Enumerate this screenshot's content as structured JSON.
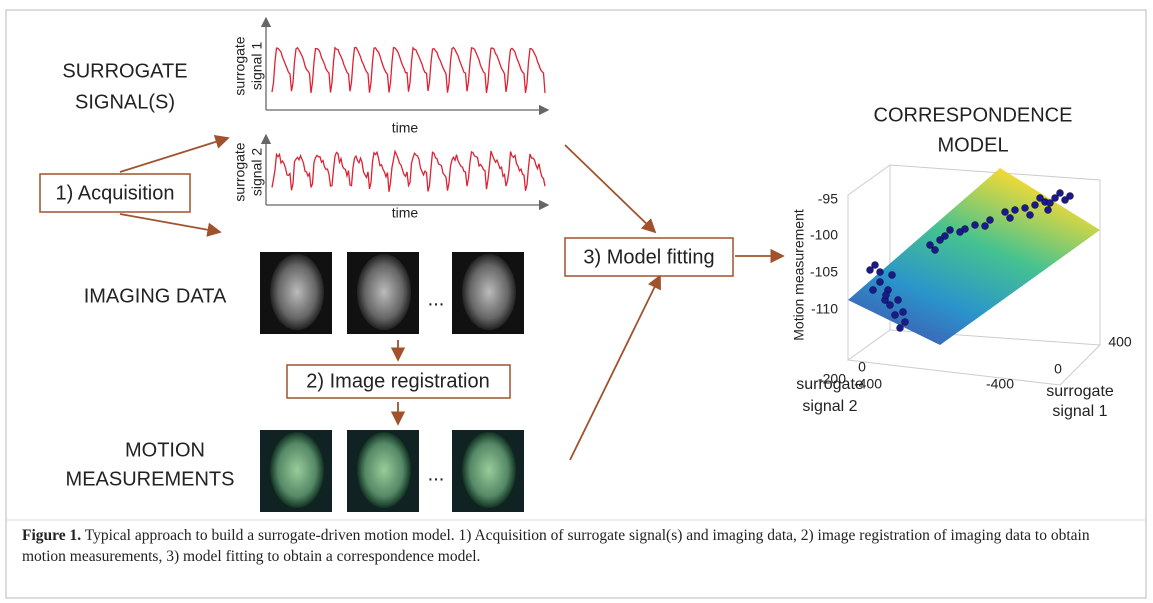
{
  "figure": {
    "acquisition": {
      "heading": [
        "SURROGATE",
        "SIGNAL(S)"
      ],
      "box": "1) Acquisition"
    },
    "signal1": {
      "ylabel": [
        "surrogate",
        "signal 1"
      ],
      "xlabel": "time"
    },
    "signal2": {
      "ylabel": [
        "surrogate",
        "signal 2"
      ],
      "xlabel": "time"
    },
    "imaging": {
      "label": "IMAGING DATA",
      "ellipsis": "..."
    },
    "registration": {
      "box": "2) Image registration"
    },
    "motion": {
      "label": [
        "MOTION",
        "MEASUREMENTS"
      ],
      "ellipsis": "..."
    },
    "fitting": {
      "box": "3) Model fitting"
    },
    "model": {
      "title": [
        "CORRESPONDENCE",
        "MODEL"
      ],
      "zlabel": "Motion measurement",
      "zticks": [
        "-95",
        "-100",
        "-105",
        "-110"
      ],
      "s2ticks": [
        "0",
        "-200",
        "-400"
      ],
      "s2label": [
        "surrogate",
        "signal 2"
      ],
      "s1ticks": [
        "-400",
        "0",
        "400"
      ],
      "s1label": [
        "surrogate",
        "signal 1"
      ]
    },
    "caption": {
      "label": "Figure 1.",
      "text": " Typical approach to build a surrogate-driven motion model. 1) Acquisition of surrogate signal(s) and imaging data, 2) image registration of imaging data to obtain motion measurements, 3) model fitting to obtain a correspondence model."
    }
  }
}
